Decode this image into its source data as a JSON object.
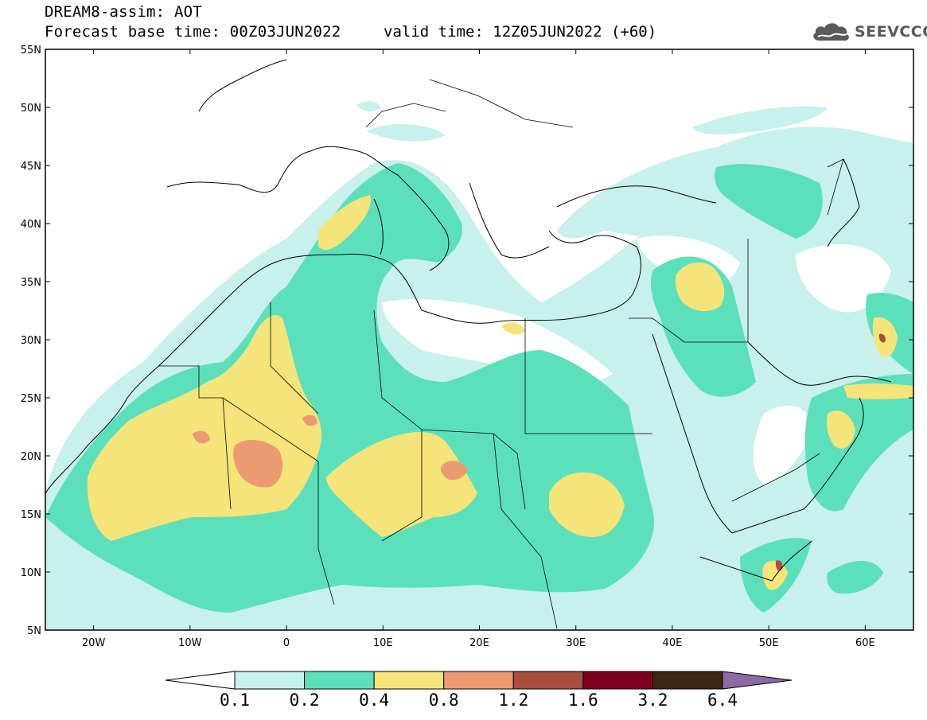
{
  "header": {
    "title_line1": "DREAM8-assim: AOT",
    "title_line2": "Forecast base time: 00Z03JUN2022",
    "valid_time": "valid time: 12Z05JUN2022 (+60)",
    "logo_text": "SEEVCCC",
    "logo_icon": "cloud-icon"
  },
  "map": {
    "lon_range": [
      -25,
      65
    ],
    "lat_range": [
      5,
      55
    ],
    "lat_ticks": [
      "55N",
      "50N",
      "45N",
      "40N",
      "35N",
      "30N",
      "25N",
      "20N",
      "15N",
      "10N",
      "5N"
    ],
    "lon_ticks": [
      "20W",
      "10W",
      "0",
      "10E",
      "20E",
      "30E",
      "40E",
      "50E",
      "60E"
    ]
  },
  "colorbar": {
    "labels": [
      "0.1",
      "0.2",
      "0.4",
      "0.8",
      "1.2",
      "1.6",
      "3.2",
      "6.4"
    ],
    "colors": [
      "#ffffff",
      "#c8f0ec",
      "#5ce0bc",
      "#f5e479",
      "#eb9a72",
      "#a84e3e",
      "#800020",
      "#3e2614",
      "#8c6aa6"
    ]
  },
  "colors": {
    "very_low": "#c8f0ec",
    "low": "#5ce0bc",
    "medium": "#f5e479",
    "high": "#eb9a72",
    "very_high": "#a84e3e"
  }
}
